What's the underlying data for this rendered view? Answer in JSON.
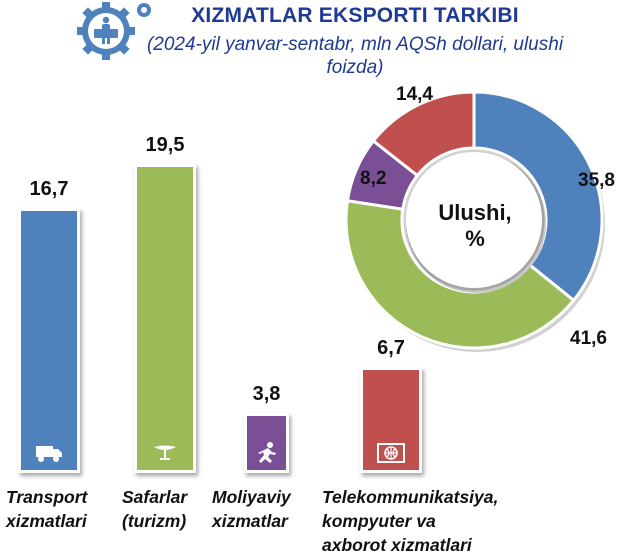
{
  "title": "XIZMATLAR EKSPORTI TARKIBI",
  "subtitle": "(2024-yil yanvar-sentabr, mln AQSh dollari, ulushi foizda)",
  "chart_data": [
    {
      "type": "bar",
      "categories": [
        "Transport\nxizmatlari",
        "Safarlar\n(turizm)",
        "Moliyaviy\nxizmatlar",
        "Telekommunikatsiya,\nkompyuter va\naxborot xizmatlari"
      ],
      "values": [
        16.7,
        19.5,
        3.8,
        6.7
      ],
      "value_labels": [
        "16,7",
        "19,5",
        "3,8",
        "6,7"
      ],
      "colors": [
        "#4f81bd",
        "#9bbb59",
        "#7a4f96",
        "#c0504d"
      ],
      "icons": [
        "truck-icon",
        "umbrella-icon",
        "runner-icon",
        "globe-icon"
      ],
      "grid": false
    },
    {
      "type": "pie",
      "center_label": "Ulushi,\n%",
      "values": [
        35.8,
        41.6,
        8.2,
        14.4
      ],
      "value_labels": [
        "35,8",
        "41,6",
        "8,2",
        "14,4"
      ],
      "colors": [
        "#4f81bd",
        "#9bbb59",
        "#7a4f96",
        "#c0504d"
      ]
    }
  ]
}
